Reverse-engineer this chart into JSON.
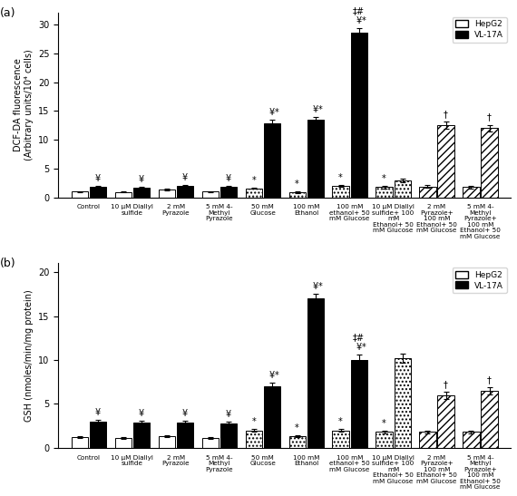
{
  "panel_a": {
    "ylabel": "DCF-DA fluorescence\n(Arbitrary units/10⁴ cells)",
    "ylim": [
      0,
      32
    ],
    "yticks": [
      0,
      5,
      10,
      15,
      20,
      25,
      30
    ],
    "categories": [
      "Control",
      "10 μM Diallyl\nsulfide",
      "2 mM\nPyrazole",
      "5 mM 4-\nMethyl\nPyrazole",
      "50 mM\nGlucose",
      "100 mM\nEthanol",
      "100 mM\nethanol+ 50\nmM Glucose",
      "10 μM Diallyl\nsulfide+ 100\nmM\nEthanol+ 50\nmM Glucose",
      "2 mM\nPyrazole+\n100 mM\nEthanol+ 50\nmM Glucose",
      "5 mM 4-\nMethyl\nPyrazole+\n100 mM\nEthanol+ 50\nmM Glucose"
    ],
    "hepg2_values": [
      1.0,
      0.95,
      1.3,
      1.0,
      1.6,
      0.9,
      2.0,
      1.8,
      1.9,
      1.8
    ],
    "hepg2_errors": [
      0.1,
      0.1,
      0.15,
      0.1,
      0.15,
      0.1,
      0.2,
      0.2,
      0.2,
      0.2
    ],
    "vl17a_values": [
      1.8,
      1.7,
      2.0,
      1.8,
      12.8,
      13.5,
      28.5,
      3.0,
      12.5,
      12.0
    ],
    "vl17a_errors": [
      0.15,
      0.15,
      0.2,
      0.15,
      0.6,
      0.5,
      0.8,
      0.3,
      0.6,
      0.6
    ],
    "ann_hepg2": [
      "",
      "",
      "",
      "",
      "*",
      "*",
      "*",
      "*",
      "",
      ""
    ],
    "ann_vl17a": [
      "¥",
      "¥",
      "¥",
      "¥",
      "¥ *",
      "¥ *",
      "‡#\n¥ *",
      "",
      "†",
      "†"
    ],
    "ann_vl17a_only": [
      "¥",
      "¥",
      "¥",
      "¥",
      "¥",
      "¥",
      "¥",
      "",
      "†",
      "†"
    ],
    "label": "(a)"
  },
  "panel_b": {
    "ylabel": "GSH (nmoles/min/mg protein)",
    "ylim": [
      0,
      21
    ],
    "yticks": [
      0,
      5,
      10,
      15,
      20
    ],
    "categories": [
      "Control",
      "10 μM Diallyl\nsulfide",
      "2 mM\nPyrazole",
      "5 mM 4-\nMethyl\nPyrazole",
      "50 mM\nGlucose",
      "100 mM\nEthanol",
      "100 mM\nethanol+ 50\nmM Glucose",
      "10 μM Diallyl\nsulfide+ 100\nmM\nEthanol+ 50\nmM Glucose",
      "2 mM\nPyrazole+\n100 mM\nEthanol+ 50\nmM Glucose",
      "5 mM 4-\nMethyl\nPyrazole+\n100 mM\nEthanol+ 50\nmM Glucose"
    ],
    "hepg2_values": [
      1.2,
      1.1,
      1.3,
      1.1,
      2.0,
      1.3,
      2.0,
      1.8,
      1.8,
      1.8
    ],
    "hepg2_errors": [
      0.1,
      0.1,
      0.1,
      0.1,
      0.15,
      0.1,
      0.2,
      0.15,
      0.15,
      0.15
    ],
    "vl17a_values": [
      3.0,
      2.9,
      2.9,
      2.8,
      7.0,
      17.0,
      10.0,
      10.2,
      6.0,
      6.5
    ],
    "vl17a_errors": [
      0.2,
      0.2,
      0.2,
      0.2,
      0.4,
      0.5,
      0.6,
      0.5,
      0.4,
      0.4
    ],
    "ann_hepg2": [
      "",
      "",
      "",
      "",
      "*",
      "*",
      "*",
      "*",
      "",
      ""
    ],
    "ann_vl17a_only": [
      "¥",
      "¥",
      "¥",
      "¥",
      "¥",
      "¥",
      "¥",
      "",
      "†",
      "†"
    ],
    "label": "(b)"
  },
  "hepg2_facecolors": [
    "white",
    "white",
    "white",
    "white",
    "white",
    "white",
    "white",
    "white",
    "white",
    "white"
  ],
  "hepg2_hatches": [
    "",
    "",
    "",
    "",
    "....",
    "....",
    "....",
    "....",
    "////",
    "////"
  ],
  "vl17a_facecolors": [
    "black",
    "black",
    "black",
    "black",
    "black",
    "black",
    "black",
    "white",
    "white",
    "white"
  ],
  "vl17a_hatches": [
    "",
    "",
    "",
    "",
    "....",
    "....",
    "++++",
    "....",
    "////",
    "////"
  ]
}
